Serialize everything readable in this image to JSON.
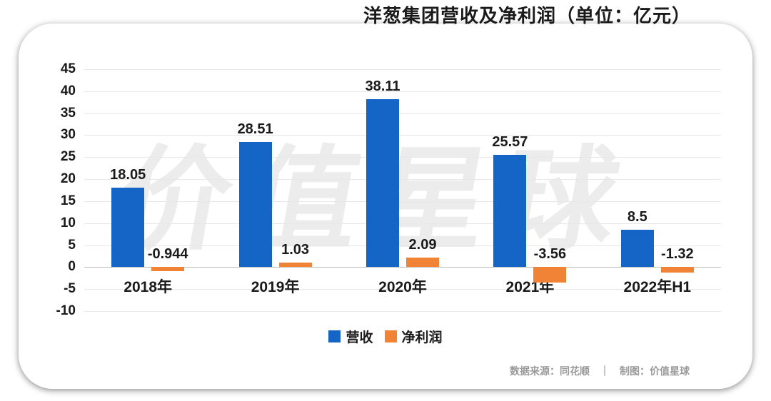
{
  "title": "洋葱集团营收及净利润（单位：亿元）",
  "watermark": "价值星球",
  "source": "数据来源：同花顺　｜　制图：价值星球",
  "colors": {
    "revenue_blue": "#1565C6",
    "profit_orange": "#F08336",
    "gridline": "#e7e7e7",
    "zero_line": "#bdbdbd",
    "watermark_gray": "#ececec",
    "source_gray": "#9a9a9a"
  },
  "chart_data": {
    "type": "bar",
    "title": "洋葱集团营收及净利润（单位：亿元）",
    "categories": [
      "2018年",
      "2019年",
      "2020年",
      "2021年",
      "2022年H1"
    ],
    "series": [
      {
        "name": "营收",
        "color": "#1565C6",
        "values": [
          18.05,
          28.51,
          38.11,
          25.57,
          8.5
        ]
      },
      {
        "name": "净利润",
        "color": "#F08336",
        "values": [
          -0.944,
          1.03,
          2.09,
          -3.56,
          -1.32
        ]
      }
    ],
    "xlabel": "",
    "ylabel": "",
    "ylim": [
      -10,
      45
    ],
    "yticks": [
      45,
      40,
      35,
      30,
      25,
      20,
      15,
      10,
      5,
      0,
      -5,
      -10
    ],
    "grid": true,
    "legend_position": "bottom"
  }
}
